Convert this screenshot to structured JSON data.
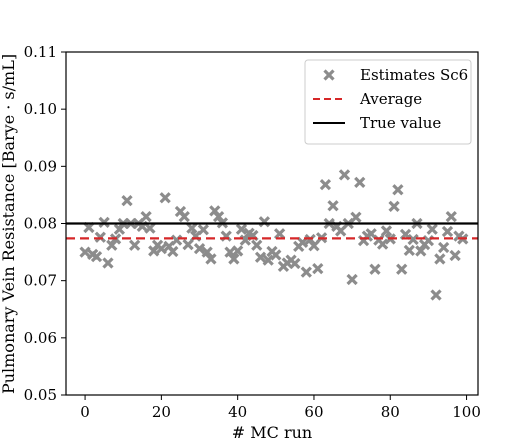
{
  "chart_data": {
    "type": "scatter",
    "title": "",
    "xlabel": "# MC run",
    "ylabel": "Pulmonary Vein Resistance [Barye · s/mL]",
    "xlim": [
      -5,
      103
    ],
    "ylim": [
      0.05,
      0.11
    ],
    "xticks": [
      0,
      20,
      40,
      60,
      80,
      100
    ],
    "xtick_labels": [
      "0",
      "20",
      "40",
      "60",
      "80",
      "100"
    ],
    "yticks": [
      0.05,
      0.06,
      0.07,
      0.08,
      0.09,
      0.1,
      0.11
    ],
    "ytick_labels": [
      "0.05",
      "0.06",
      "0.07",
      "0.08",
      "0.09",
      "0.10",
      "0.11"
    ],
    "grid": false,
    "legend_position": "top-right",
    "series": [
      {
        "name": "Estimates Sc6",
        "marker": "x",
        "color": "#8c8c8c",
        "x": [
          0,
          1,
          2,
          3,
          4,
          5,
          6,
          7,
          8,
          9,
          10,
          11,
          12,
          13,
          14,
          15,
          16,
          17,
          18,
          19,
          20,
          21,
          22,
          23,
          24,
          25,
          26,
          27,
          28,
          29,
          30,
          31,
          32,
          33,
          34,
          35,
          36,
          37,
          38,
          39,
          40,
          41,
          42,
          43,
          44,
          45,
          46,
          47,
          48,
          49,
          50,
          51,
          52,
          53,
          54,
          55,
          56,
          57,
          58,
          59,
          60,
          61,
          62,
          63,
          64,
          65,
          66,
          67,
          68,
          69,
          70,
          71,
          72,
          73,
          74,
          75,
          76,
          77,
          78,
          79,
          80,
          81,
          82,
          83,
          84,
          85,
          86,
          87,
          88,
          89,
          90,
          91,
          92,
          93,
          94,
          95,
          96,
          97,
          98,
          99
        ],
        "y": [
          0.075,
          0.0793,
          0.0746,
          0.0742,
          0.0776,
          0.0802,
          0.0731,
          0.0762,
          0.0773,
          0.079,
          0.08,
          0.084,
          0.08,
          0.0762,
          0.08,
          0.0795,
          0.0812,
          0.0792,
          0.0752,
          0.0762,
          0.0756,
          0.0845,
          0.076,
          0.0751,
          0.0771,
          0.0821,
          0.0812,
          0.0763,
          0.0792,
          0.0778,
          0.0756,
          0.0789,
          0.075,
          0.0738,
          0.0822,
          0.0812,
          0.0801,
          0.0778,
          0.075,
          0.0738,
          0.0752,
          0.079,
          0.0771,
          0.0783,
          0.0779,
          0.0762,
          0.0741,
          0.0803,
          0.0736,
          0.0751,
          0.0745,
          0.0782,
          0.0725,
          0.0731,
          0.0736,
          0.073,
          0.076,
          0.0767,
          0.0715,
          0.0772,
          0.0761,
          0.0721,
          0.0775,
          0.0868,
          0.08,
          0.0831,
          0.0795,
          0.0787,
          0.0885,
          0.08,
          0.0702,
          0.0811,
          0.0872,
          0.077,
          0.0778,
          0.0782,
          0.072,
          0.0771,
          0.0764,
          0.0787,
          0.0773,
          0.083,
          0.0859,
          0.072,
          0.0781,
          0.0753,
          0.0772,
          0.08,
          0.0752,
          0.0763,
          0.077,
          0.079,
          0.0675,
          0.0738,
          0.0758,
          0.0786,
          0.0812,
          0.0744,
          0.0778,
          0.0773
        ]
      },
      {
        "name": "Average",
        "style": "dashed",
        "color": "#d62728",
        "value": 0.0774
      },
      {
        "name": "True value",
        "style": "solid",
        "color": "#000000",
        "value": 0.08
      }
    ]
  }
}
